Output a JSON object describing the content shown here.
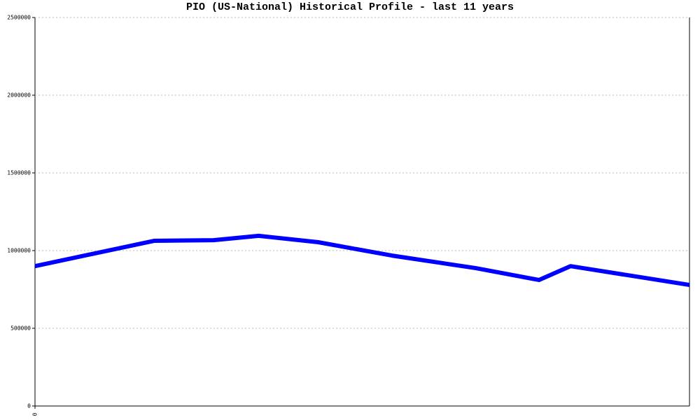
{
  "chart_data": {
    "type": "line",
    "title": "PIO (US-National) Historical Profile - last 11 years",
    "x": [
      0,
      2.0,
      3.0,
      3.76,
      4.76,
      6.0,
      7.41,
      8.47,
      9.0,
      11
    ],
    "series": [
      {
        "color": "#0000ff",
        "values": [
          900000,
          1063000,
          1067000,
          1095000,
          1054000,
          968000,
          887000,
          811000,
          900000,
          779000
        ]
      }
    ],
    "xlim": [
      0,
      11
    ],
    "xticks": [
      0
    ],
    "ylim": [
      0,
      2500000
    ],
    "yticks": [
      0,
      500000,
      1000000,
      1500000,
      2000000,
      2500000
    ],
    "grid": true
  }
}
